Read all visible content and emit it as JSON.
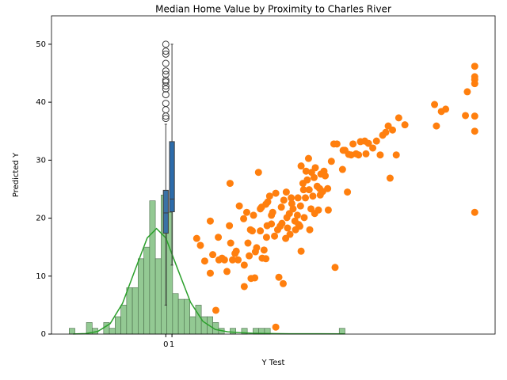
{
  "chart_data": {
    "type": "scatter",
    "title": "Median Home Value by Proximity to Charles River",
    "x_label": "Y Test",
    "y_label": "Predicted Y",
    "xlim": [
      -18.5,
      53.3
    ],
    "ylim": [
      0,
      54.9
    ],
    "xticks": [
      0,
      1
    ],
    "yticks": [
      0,
      10,
      20,
      30,
      40,
      50
    ],
    "color": "#ff7f0e",
    "x": [
      5.0,
      5.6,
      6.3,
      7.2,
      7.2,
      7.6,
      8.1,
      8.5,
      8.6,
      9.1,
      9.5,
      9.9,
      10.3,
      10.4,
      10.5,
      10.8,
      11.2,
      11.4,
      11.7,
      11.9,
      12.6,
      12.7,
      12.7,
      13.1,
      13.3,
      13.5,
      13.7,
      13.8,
      14.0,
      14.2,
      14.4,
      14.5,
      14.7,
      15.0,
      15.3,
      15.3,
      15.5,
      15.6,
      15.9,
      16.2,
      16.3,
      16.4,
      16.5,
      16.8,
      17.1,
      17.3,
      17.6,
      17.8,
      17.8,
      18.1,
      18.3,
      18.5,
      18.8,
      19.0,
      19.1,
      19.4,
      19.5,
      19.6,
      19.7,
      20.0,
      20.1,
      20.4,
      20.6,
      20.9,
      21.0,
      21.3,
      21.4,
      21.7,
      21.8,
      21.9,
      21.9,
      22.2,
      22.3,
      22.4,
      22.6,
      22.7,
      22.9,
      23.1,
      23.2,
      23.3,
      23.5,
      23.6,
      23.8,
      24.0,
      24.2,
      24.5,
      24.7,
      24.9,
      25.0,
      25.1,
      25.4,
      25.6,
      25.8,
      26.2,
      26.3,
      26.8,
      27.2,
      27.4,
      27.7,
      28.6,
      28.7,
      29.0,
      29.4,
      29.6,
      30.0,
      30.3,
      30.8,
      31.2,
      31.5,
      32.2,
      32.4,
      32.8,
      33.5,
      34.1,
      34.7,
      35.1,
      35.6,
      36.0,
      36.3,
      36.7,
      37.3,
      37.7,
      38.7,
      43.5,
      43.8,
      44.6,
      45.3,
      48.5,
      48.8,
      50,
      50,
      50,
      50,
      50,
      50,
      50,
      16.2,
      17.1,
      18.7,
      20.3,
      21.5,
      24.1
    ],
    "values": [
      16.5,
      15.3,
      12.6,
      19.5,
      10.5,
      13.7,
      4.1,
      16.7,
      12.8,
      13.1,
      12.8,
      10.8,
      18.7,
      26.0,
      15.7,
      12.8,
      13.9,
      14.3,
      12.8,
      22.1,
      19.9,
      8.2,
      11.9,
      21.0,
      15.7,
      13.5,
      18.0,
      9.6,
      17.8,
      20.5,
      9.7,
      14.2,
      14.9,
      27.9,
      17.8,
      21.6,
      21.9,
      13.1,
      14.5,
      13.0,
      16.7,
      18.7,
      22.8,
      23.8,
      20.5,
      21.0,
      16.9,
      1.2,
      24.3,
      18.0,
      9.8,
      18.6,
      19.1,
      8.7,
      23.1,
      16.5,
      24.5,
      20.1,
      18.3,
      20.8,
      17.2,
      22.5,
      21.6,
      19.5,
      18.0,
      20.5,
      23.5,
      18.6,
      22.1,
      14.3,
      29.0,
      26.0,
      24.9,
      20.1,
      23.5,
      28.1,
      26.6,
      30.3,
      24.9,
      18.0,
      21.6,
      27.9,
      23.8,
      27.0,
      28.7,
      25.5,
      21.4,
      25.1,
      24.0,
      27.6,
      24.6,
      28.1,
      27.3,
      25.1,
      21.4,
      29.8,
      32.8,
      11.5,
      32.8,
      28.4,
      31.7,
      31.7,
      24.5,
      31.0,
      30.9,
      32.8,
      31.1,
      30.9,
      33.2,
      33.3,
      31.1,
      32.9,
      32.1,
      33.3,
      30.9,
      34.3,
      34.8,
      35.9,
      26.9,
      35.2,
      30.9,
      37.3,
      36.1,
      39.6,
      35.9,
      38.4,
      38.8,
      37.7,
      41.8,
      46.2,
      44.4,
      43.9,
      43.2,
      37.6,
      35.0,
      21.0,
      22.4,
      19.0,
      21.9,
      23.5,
      18.9,
      20.8
    ],
    "histogram": {
      "type": "histogram",
      "color": "#93c993",
      "bins": [
        -15.64,
        -14.71,
        -13.78,
        -12.85,
        -11.92,
        -10.99,
        -10.06,
        -9.13,
        -8.2,
        -7.27,
        -6.34,
        -5.41,
        -4.48,
        -3.55,
        -2.62,
        -1.69,
        -0.76,
        0.17,
        1.1,
        2.03,
        2.96,
        3.89,
        4.82,
        5.75,
        6.68,
        7.61,
        8.54,
        9.47,
        10.4,
        11.33,
        12.26,
        13.19,
        14.12,
        15.05,
        15.98,
        16.91,
        17.84,
        18.77,
        19.7,
        20.63,
        21.56,
        22.49,
        23.42,
        24.35,
        25.28,
        26.21,
        27.14,
        28.07,
        29.0
      ],
      "counts": [
        1,
        0,
        0,
        2,
        1,
        0,
        2,
        1,
        3,
        5,
        8,
        8,
        13,
        15,
        23,
        13,
        24,
        21,
        7,
        6,
        6,
        3,
        5,
        3,
        3,
        2,
        1,
        0,
        1,
        0,
        1,
        0,
        1,
        1,
        1,
        0,
        0,
        0,
        0,
        0,
        0,
        0,
        0,
        0,
        0,
        0,
        0,
        1
      ]
    },
    "kde": {
      "type": "line",
      "color": "#2ca02c",
      "x": [
        -15,
        -13,
        -11,
        -9,
        -7,
        -5,
        -3,
        -1.5,
        0,
        2,
        4,
        6,
        8,
        10,
        12,
        14,
        16,
        20,
        25,
        29
      ],
      "values": [
        0.01,
        0.08,
        0.46,
        1.8,
        5.3,
        11.0,
        16.6,
        18.2,
        16.6,
        11.0,
        5.5,
        2.2,
        0.8,
        0.4,
        0.25,
        0.15,
        0.1,
        0.05,
        0.05,
        0.03
      ]
    },
    "boxplot": {
      "type": "box",
      "boxes": [
        {
          "x": 0,
          "color": "#3a72a6",
          "whislo": 5.0,
          "q1": 17.4,
          "med": 20.9,
          "q3": 24.8,
          "whishi": 36.2,
          "fliers": [
            37.2,
            37.6,
            38.7,
            39.8,
            41.3,
            42.3,
            42.8,
            43.5,
            43.8,
            44.8,
            45.4,
            46.7,
            48.3,
            48.8,
            50
          ]
        },
        {
          "x": 1,
          "color": "#2c6cab",
          "whislo": 11.9,
          "q1": 21.1,
          "med": 23.3,
          "q3": 33.2,
          "whishi": 50,
          "fliers": []
        }
      ]
    }
  }
}
